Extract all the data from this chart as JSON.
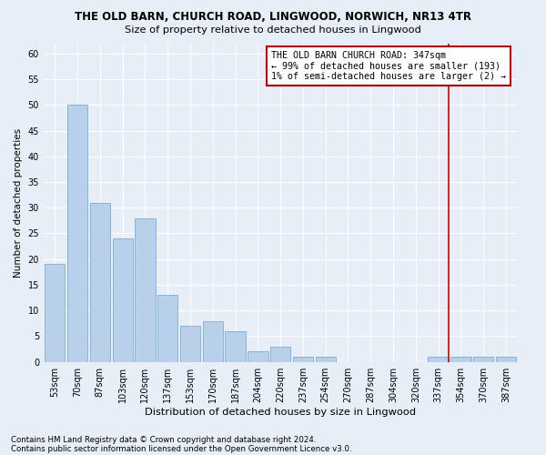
{
  "title1": "THE OLD BARN, CHURCH ROAD, LINGWOOD, NORWICH, NR13 4TR",
  "title2": "Size of property relative to detached houses in Lingwood",
  "xlabel": "Distribution of detached houses by size in Lingwood",
  "ylabel": "Number of detached properties",
  "footer1": "Contains HM Land Registry data © Crown copyright and database right 2024.",
  "footer2": "Contains public sector information licensed under the Open Government Licence v3.0.",
  "annotation_title": "THE OLD BARN CHURCH ROAD: 347sqm",
  "annotation_line1": "← 99% of detached houses are smaller (193)",
  "annotation_line2": "1% of semi-detached houses are larger (2) →",
  "bar_color": "#b8d0ea",
  "bar_edge_color": "#7aadd4",
  "background_color": "#e8eef8",
  "grid_color": "#ffffff",
  "annotation_box_color": "#ffffff",
  "annotation_box_edge_color": "#cc0000",
  "red_line_color": "#cc0000",
  "categories": [
    "53sqm",
    "70sqm",
    "87sqm",
    "103sqm",
    "120sqm",
    "137sqm",
    "153sqm",
    "170sqm",
    "187sqm",
    "204sqm",
    "220sqm",
    "237sqm",
    "254sqm",
    "270sqm",
    "287sqm",
    "304sqm",
    "320sqm",
    "337sqm",
    "354sqm",
    "370sqm",
    "387sqm"
  ],
  "values": [
    19,
    50,
    31,
    24,
    28,
    13,
    7,
    8,
    6,
    2,
    3,
    1,
    1,
    0,
    0,
    0,
    0,
    1,
    1,
    1,
    1
  ],
  "ylim": [
    0,
    62
  ],
  "yticks": [
    0,
    5,
    10,
    15,
    20,
    25,
    30,
    35,
    40,
    45,
    50,
    55,
    60
  ],
  "red_line_x": 17.45,
  "title1_fontsize": 8.5,
  "title2_fontsize": 8.2,
  "xlabel_fontsize": 8.2,
  "ylabel_fontsize": 7.5,
  "tick_fontsize": 7.0,
  "annotation_fontsize": 7.2,
  "footer_fontsize": 6.2
}
